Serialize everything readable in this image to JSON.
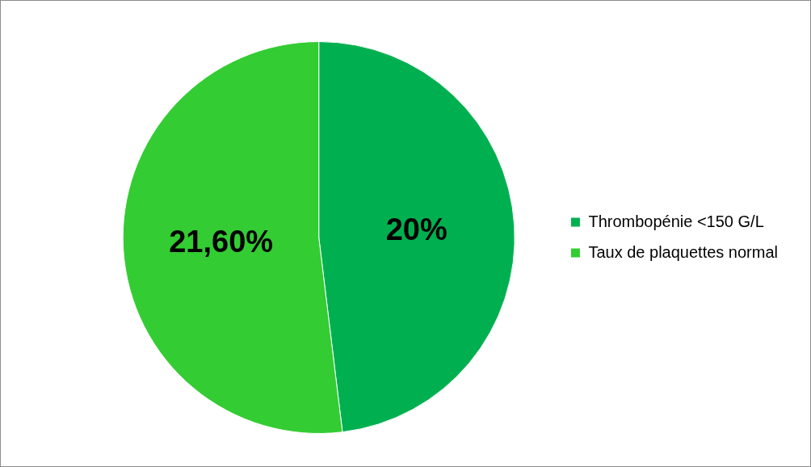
{
  "chart_data": {
    "type": "pie",
    "categories": [
      "Thrombopénie <150 G/L",
      "Taux de plaquettes normal"
    ],
    "values": [
      20,
      21.6
    ],
    "colors": [
      "#00b050",
      "#33cc33"
    ],
    "value_labels": [
      "20%",
      "21,60%"
    ],
    "legend": "right"
  }
}
